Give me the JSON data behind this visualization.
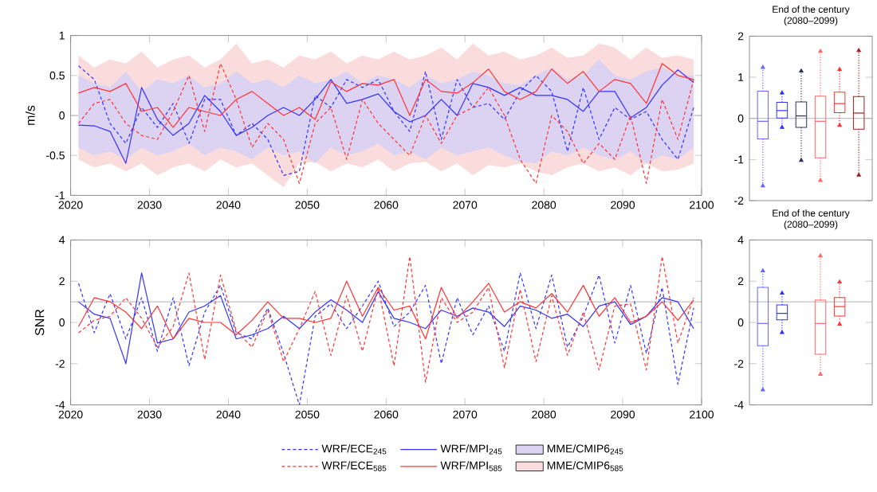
{
  "chart_data": [
    {
      "type": "line",
      "ylabel": "m/s",
      "xlim": [
        2020,
        2100
      ],
      "ylim": [
        -1,
        1
      ],
      "xticks": [
        2020,
        2030,
        2040,
        2050,
        2060,
        2070,
        2080,
        2090,
        2100
      ],
      "yticks": [
        -1,
        -0.5,
        0,
        0.5,
        1
      ],
      "legend": "bottom",
      "x": [
        2021,
        2023,
        2025,
        2027,
        2029,
        2031,
        2033,
        2035,
        2037,
        2039,
        2041,
        2043,
        2045,
        2047,
        2049,
        2051,
        2053,
        2055,
        2057,
        2059,
        2061,
        2063,
        2065,
        2067,
        2069,
        2071,
        2073,
        2075,
        2077,
        2079,
        2081,
        2083,
        2085,
        2087,
        2089,
        2091,
        2093,
        2095,
        2097,
        2099
      ],
      "ref_lines": [
        {
          "axis": "y",
          "value": 0,
          "color": "#a0a0a0"
        }
      ],
      "series": [
        {
          "name": "WRF/ECE$_{245}$",
          "color": "#3333ff",
          "line_style": "dashed",
          "values": [
            0.62,
            0.45,
            -0.1,
            -0.35,
            0.1,
            -0.15,
            0.15,
            -0.35,
            0.2,
            0.2,
            -0.25,
            -0.1,
            -0.3,
            -0.75,
            -0.7,
            0.25,
            0.1,
            0.45,
            0.35,
            0.45,
            0.05,
            -0.2,
            0.55,
            -0.3,
            0.45,
            0.1,
            0.15,
            -0.05,
            0.3,
            0.5,
            0.3,
            -0.45,
            0.35,
            -0.3,
            0.1,
            -0.05,
            0.05,
            -0.3,
            -0.55,
            0.1
          ]
        },
        {
          "name": "WRF/MPI$_{245}$",
          "color": "#3333ff",
          "line_style": "solid",
          "values": [
            -0.12,
            -0.13,
            -0.2,
            -0.6,
            0.35,
            -0.05,
            -0.25,
            -0.1,
            0.25,
            0.05,
            -0.25,
            -0.15,
            0.0,
            0.1,
            0.0,
            0.2,
            0.45,
            0.15,
            0.2,
            0.27,
            0.05,
            -0.08,
            0.0,
            0.2,
            0.0,
            0.4,
            0.35,
            0.25,
            0.35,
            0.25,
            0.25,
            0.2,
            0.05,
            0.3,
            0.3,
            -0.03,
            0.1,
            0.38,
            0.57,
            0.41
          ]
        },
        {
          "name": "MME/CMIP6$_{245}$",
          "type": "area",
          "color": "#dcd2f2",
          "values": [
            null,
            null,
            null,
            null,
            null,
            null,
            null,
            null,
            null,
            null,
            null,
            null,
            null,
            null,
            null,
            null,
            null,
            null,
            null,
            null,
            null,
            null,
            null,
            null,
            null,
            null,
            null,
            null,
            null,
            null,
            null,
            null,
            null,
            null,
            null,
            null,
            null,
            null,
            null,
            null
          ],
          "upper": [
            0.5,
            0.4,
            0.35,
            0.55,
            0.3,
            0.45,
            0.4,
            0.5,
            0.35,
            0.4,
            0.55,
            0.4,
            0.45,
            0.35,
            0.5,
            0.4,
            0.45,
            0.55,
            0.4,
            0.5,
            0.45,
            0.35,
            0.5,
            0.4,
            0.45,
            0.55,
            0.5,
            0.4,
            0.38,
            0.5,
            0.6,
            0.45,
            0.5,
            0.7,
            0.5,
            0.45,
            0.55,
            0.6,
            0.5,
            0.5
          ],
          "lower": [
            -0.4,
            -0.5,
            -0.45,
            -0.55,
            -0.4,
            -0.5,
            -0.45,
            -0.35,
            -0.5,
            -0.4,
            -0.45,
            -0.55,
            -0.4,
            -0.5,
            -0.45,
            -0.6,
            -0.4,
            -0.5,
            -0.45,
            -0.35,
            -0.5,
            -0.45,
            -0.55,
            -0.4,
            -0.5,
            -0.45,
            -0.4,
            -0.5,
            -0.58,
            -0.6,
            -0.45,
            -0.5,
            -0.4,
            -0.5,
            -0.55,
            -0.45,
            -0.6,
            -0.5,
            -0.55,
            -0.4
          ]
        },
        {
          "name": "WRF/ECE$_{585}$",
          "color": "#ff3333",
          "line_style": "dashed",
          "values": [
            -0.1,
            0.15,
            0.2,
            -0.1,
            -0.25,
            -0.3,
            0.05,
            0.5,
            -0.2,
            0.65,
            0.2,
            -0.4,
            -0.1,
            -0.3,
            -0.85,
            -0.1,
            0.1,
            -0.55,
            0.2,
            -0.1,
            -0.3,
            -0.5,
            0.0,
            -0.35,
            0.0,
            0.1,
            0.35,
            0.0,
            -0.55,
            -0.85,
            0.0,
            -0.2,
            -0.6,
            -0.35,
            -0.55,
            0.0,
            -0.85,
            0.2,
            -0.3,
            0.45
          ]
        },
        {
          "name": "WRF/MPI$_{585}$",
          "color": "#ff3333",
          "line_style": "solid",
          "values": [
            0.28,
            0.35,
            0.3,
            0.4,
            0.05,
            0.1,
            -0.15,
            0.1,
            0.05,
            0.0,
            0.2,
            0.3,
            0.15,
            0.0,
            0.1,
            -0.05,
            0.42,
            0.3,
            0.4,
            0.38,
            0.45,
            0.0,
            0.45,
            0.3,
            0.28,
            0.41,
            0.58,
            0.3,
            0.2,
            0.3,
            0.58,
            0.4,
            0.55,
            0.3,
            0.45,
            0.4,
            0.15,
            0.65,
            0.5,
            0.45
          ]
        },
        {
          "name": "MME/CMIP6$_{585}$",
          "type": "area",
          "color": "#fadcdc",
          "values": [
            null,
            null,
            null,
            null,
            null,
            null,
            null,
            null,
            null,
            null,
            null,
            null,
            null,
            null,
            null,
            null,
            null,
            null,
            null,
            null,
            null,
            null,
            null,
            null,
            null,
            null,
            null,
            null,
            null,
            null,
            null,
            null,
            null,
            null,
            null,
            null,
            null,
            null,
            null,
            null
          ],
          "upper": [
            0.75,
            0.6,
            0.7,
            0.65,
            0.8,
            0.6,
            0.7,
            0.75,
            0.6,
            0.7,
            0.9,
            0.65,
            0.7,
            0.6,
            0.75,
            0.7,
            0.8,
            0.65,
            0.75,
            0.7,
            0.8,
            0.7,
            0.75,
            0.85,
            0.7,
            0.9,
            0.75,
            0.8,
            0.7,
            0.75,
            0.85,
            0.72,
            0.75,
            0.9,
            0.85,
            0.7,
            0.85,
            0.72,
            0.75,
            0.7
          ],
          "lower": [
            -0.55,
            -0.65,
            -0.6,
            -0.7,
            -0.6,
            -0.75,
            -0.65,
            -0.6,
            -0.7,
            -0.55,
            -0.65,
            -0.6,
            -0.75,
            -0.9,
            -0.6,
            -0.58,
            -0.7,
            -0.6,
            -0.65,
            -0.55,
            -0.7,
            -0.6,
            -0.58,
            -0.7,
            -0.6,
            -0.75,
            -0.62,
            -0.65,
            -0.6,
            -0.7,
            -0.75,
            -0.65,
            -0.6,
            -0.7,
            -0.65,
            -0.75,
            -0.6,
            -0.7,
            -0.68,
            -0.6
          ]
        }
      ]
    },
    {
      "type": "box",
      "title": "End of the century",
      "subtitle": "(2080–2099)",
      "ylim": [
        -2,
        2
      ],
      "yticks": [
        -2,
        -1,
        0,
        1,
        2
      ],
      "tick_labels": "y",
      "categories": [
        null,
        null,
        null,
        null,
        null,
        null
      ],
      "colors": [
        "#6666ff",
        "#3333ff",
        "#303060",
        "#ff6666",
        "#ff3333",
        "#a02020"
      ],
      "ref_lines": [
        {
          "axis": "y",
          "value": 0,
          "color": "#a0a0a0"
        }
      ],
      "boxes": [
        {
          "low": -1.64,
          "q1": -0.5,
          "median": -0.07,
          "q3": 0.66,
          "high": 1.24
        },
        {
          "low": -0.22,
          "q1": 0.01,
          "median": 0.19,
          "q3": 0.39,
          "high": 0.62
        },
        {
          "low": -1.02,
          "q1": -0.22,
          "median": 0.06,
          "q3": 0.4,
          "high": 1.15
        },
        {
          "low": -1.51,
          "q1": -0.96,
          "median": -0.07,
          "q3": 0.54,
          "high": 1.63
        },
        {
          "low": -0.17,
          "q1": 0.14,
          "median": 0.36,
          "q3": 0.64,
          "high": 1.19
        },
        {
          "low": -1.38,
          "q1": -0.26,
          "median": 0.13,
          "q3": 0.53,
          "high": 1.65
        }
      ]
    },
    {
      "type": "line",
      "ylabel": "SNR",
      "xlim": [
        2020,
        2100
      ],
      "ylim": [
        -4,
        4
      ],
      "xticks": [
        2020,
        2030,
        2040,
        2050,
        2060,
        2070,
        2080,
        2090,
        2100
      ],
      "yticks": [
        -4,
        -2,
        0,
        2,
        4
      ],
      "x": [
        2021,
        2023,
        2025,
        2027,
        2029,
        2031,
        2033,
        2035,
        2037,
        2039,
        2041,
        2043,
        2045,
        2047,
        2049,
        2051,
        2053,
        2055,
        2057,
        2059,
        2061,
        2063,
        2065,
        2067,
        2069,
        2071,
        2073,
        2075,
        2077,
        2079,
        2081,
        2083,
        2085,
        2087,
        2089,
        2091,
        2093,
        2095,
        2097,
        2099
      ],
      "ref_lines": [
        {
          "axis": "y",
          "value": 1,
          "color": "#a0a0a0"
        }
      ],
      "series": [
        {
          "color": "#3333ff",
          "line_style": "dashed",
          "values": [
            1.9,
            -0.5,
            1.4,
            -0.8,
            1.2,
            -1.4,
            1.2,
            -2.1,
            0.5,
            1.8,
            -0.5,
            -0.8,
            0.7,
            -1.5,
            -4.0,
            0.3,
            0.9,
            -0.3,
            0.8,
            2.0,
            -0.2,
            0.5,
            1.8,
            -2.0,
            1.2,
            -0.6,
            0.8,
            -1.4,
            2.4,
            -0.3,
            2.3,
            -1.2,
            0.3,
            2.3,
            -1.0,
            1.8,
            -1.5,
            1.7,
            -3.0,
            0.7
          ]
        },
        {
          "color": "#3333ff",
          "line_style": "solid",
          "values": [
            1.0,
            0.4,
            0.2,
            -2.0,
            2.4,
            -1.0,
            -0.8,
            0.5,
            0.8,
            1.3,
            -0.8,
            -0.6,
            -0.3,
            0.3,
            -0.3,
            0.5,
            1.1,
            0.6,
            0.0,
            1.5,
            0.2,
            0.0,
            -0.3,
            0.6,
            0.3,
            0.7,
            0.5,
            -0.2,
            0.8,
            0.6,
            0.2,
            0.4,
            -0.2,
            0.8,
            1.0,
            -0.1,
            0.3,
            1.2,
            1.0,
            -0.3
          ]
        },
        {
          "color": "#ff3333",
          "line_style": "dashed",
          "values": [
            -0.5,
            0.1,
            0.3,
            1.2,
            0.2,
            -1.2,
            -0.2,
            2.4,
            -1.8,
            2.3,
            -0.4,
            -1.2,
            0.6,
            -1.9,
            -0.3,
            1.5,
            -1.6,
            1.3,
            -1.4,
            1.7,
            -2.1,
            3.2,
            -2.9,
            1.2,
            0.0,
            0.5,
            1.7,
            -2.2,
            1.6,
            -1.9,
            1.3,
            -1.6,
            0.5,
            -2.3,
            0.8,
            0.9,
            -2.3,
            3.2,
            -1.0,
            1.2
          ]
        },
        {
          "color": "#ff3333",
          "line_style": "solid",
          "values": [
            -0.2,
            1.2,
            1.0,
            0.5,
            -0.3,
            0.8,
            -0.8,
            0.2,
            0.0,
            0.0,
            -0.6,
            0.1,
            1.0,
            0.2,
            0.2,
            0.0,
            0.2,
            2.0,
            0.3,
            1.7,
            0.6,
            0.8,
            -0.8,
            1.7,
            0.2,
            1.0,
            1.9,
            0.5,
            1.0,
            0.7,
            1.4,
            0.5,
            1.8,
            0.3,
            1.2,
            0.0,
            0.3,
            1.0,
            0.1,
            1.1
          ]
        }
      ]
    },
    {
      "type": "box",
      "title": "End of the century",
      "subtitle": "(2080–2099)",
      "ylim": [
        -4,
        4
      ],
      "yticks": [
        -4,
        -2,
        0,
        2,
        4
      ],
      "tick_labels": "y",
      "categories": [
        null,
        null,
        null,
        null,
        null,
        null
      ],
      "colors": [
        "#6666ff",
        "#3333ff",
        "#303060",
        "#ff6666",
        "#ff3333",
        "#a02020"
      ],
      "ref_lines": [
        {
          "axis": "y",
          "value": 1,
          "color": "#a0a0a0"
        }
      ],
      "boxes": [
        {
          "low": -3.27,
          "q1": -1.13,
          "median": -0.05,
          "q3": 1.7,
          "high": 2.5
        },
        {
          "low": -0.49,
          "q1": 0.13,
          "median": 0.44,
          "q3": 0.85,
          "high": 1.42
        },
        null,
        {
          "low": -2.52,
          "q1": -1.54,
          "median": -0.05,
          "q3": 1.08,
          "high": 3.23
        },
        {
          "low": -0.08,
          "q1": 0.31,
          "median": 0.77,
          "q3": 1.21,
          "high": 1.96
        },
        null
      ]
    }
  ]
}
